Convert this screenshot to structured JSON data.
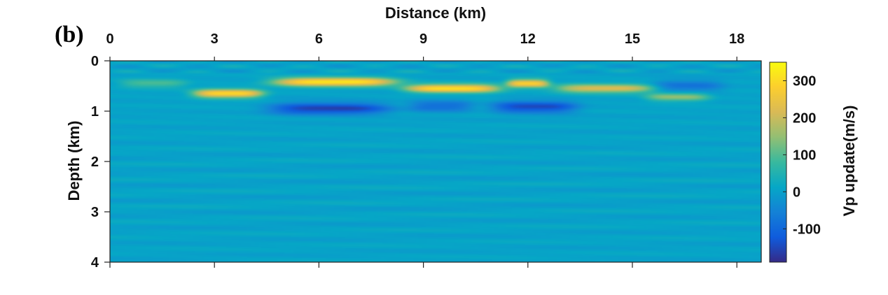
{
  "chart_data": {
    "type": "heatmap",
    "panel_label": "(b)",
    "xlabel": "Distance (km)",
    "ylabel": "Depth (km)",
    "colorbar_label": "Vp update(m/s)",
    "x_ticks": [
      "0",
      "3",
      "6",
      "9",
      "12",
      "15",
      "18"
    ],
    "y_ticks": [
      "0",
      "1",
      "2",
      "3",
      "4"
    ],
    "colorbar_ticks": [
      "300",
      "200",
      "100",
      "0",
      "-100"
    ],
    "xlim": [
      0,
      18.7
    ],
    "ylim": [
      0,
      4
    ],
    "clim": [
      -190,
      350
    ],
    "colormap": "parula",
    "colormap_stops": [
      "#352a87",
      "#0f5cdd",
      "#1481d6",
      "#06a7c6",
      "#38b99e",
      "#92bf73",
      "#d9ba56",
      "#fcce2e",
      "#f9fb0e"
    ],
    "background_value": 5,
    "features": [
      {
        "kind": "positive",
        "x": [
          4.7,
          8.2
        ],
        "depth": 0.42,
        "value": 320
      },
      {
        "kind": "positive",
        "x": [
          2.4,
          4.4
        ],
        "depth": 0.65,
        "value": 290
      },
      {
        "kind": "positive",
        "x": [
          8.5,
          11.2
        ],
        "depth": 0.55,
        "value": 300
      },
      {
        "kind": "positive",
        "x": [
          11.4,
          12.6
        ],
        "depth": 0.45,
        "value": 270
      },
      {
        "kind": "positive",
        "x": [
          12.8,
          15.6
        ],
        "depth": 0.55,
        "value": 220
      },
      {
        "kind": "positive",
        "x": [
          15.4,
          17.2
        ],
        "depth": 0.72,
        "value": 140
      },
      {
        "kind": "positive",
        "x": [
          0.3,
          2.2
        ],
        "depth": 0.45,
        "value": 90
      },
      {
        "kind": "negative",
        "x": [
          4.6,
          8.0
        ],
        "depth": 0.95,
        "value": -160
      },
      {
        "kind": "negative",
        "x": [
          11.0,
          13.4
        ],
        "depth": 0.92,
        "value": -150
      },
      {
        "kind": "negative",
        "x": [
          8.6,
          10.4
        ],
        "depth": 0.9,
        "value": -90
      },
      {
        "kind": "negative",
        "x": [
          15.6,
          17.6
        ],
        "depth": 0.5,
        "value": -80
      }
    ]
  }
}
